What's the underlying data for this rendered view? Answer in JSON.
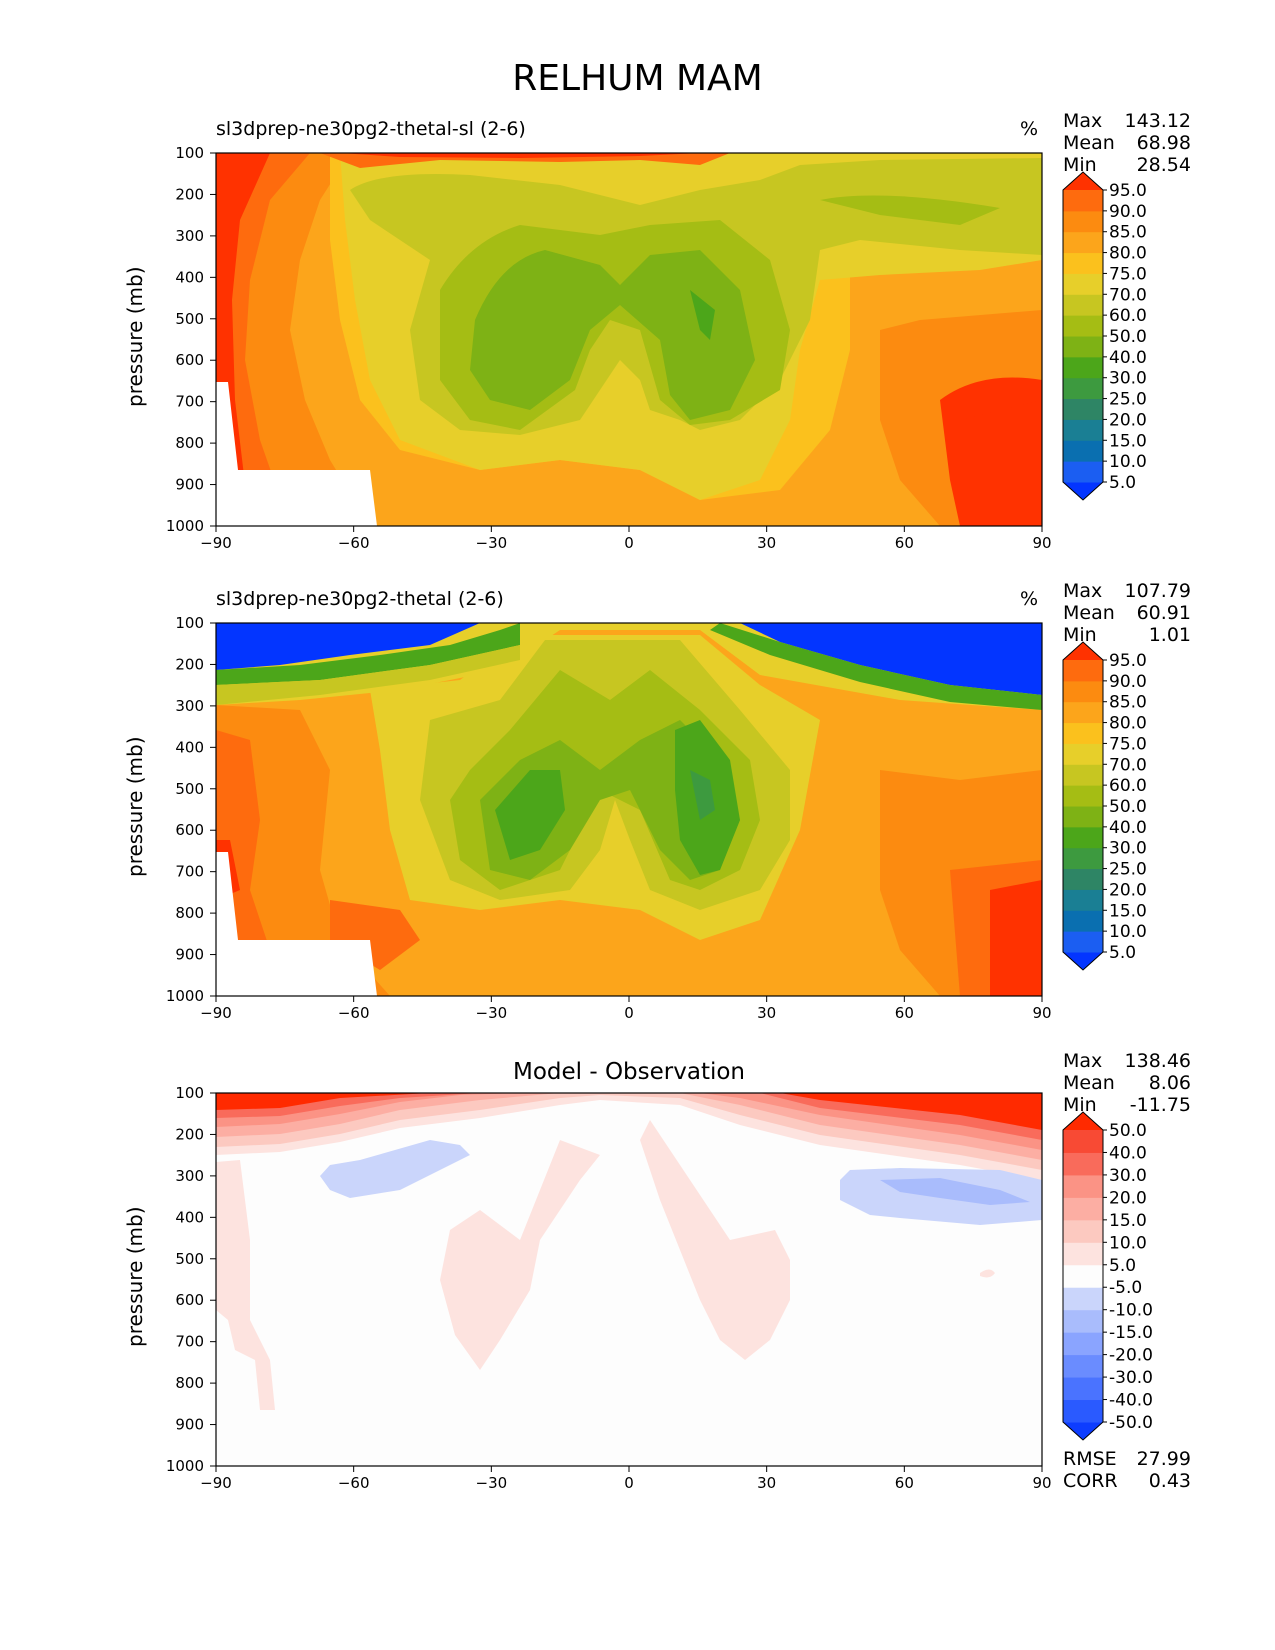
{
  "title": "RELHUM MAM",
  "panels": [
    {
      "title": "sl3dprep-ne30pg2-thetal-sl (2-6)",
      "units": "%",
      "stats": [
        {
          "label": "Max",
          "value": "143.12"
        },
        {
          "label": "Mean",
          "value": "68.98"
        },
        {
          "label": "Min",
          "value": "28.54"
        }
      ],
      "ylabel": "pressure (mb)",
      "colorbar_labels": [
        "95.0",
        "90.0",
        "85.0",
        "80.0",
        "75.0",
        "70.0",
        "60.0",
        "50.0",
        "40.0",
        "30.0",
        "25.0",
        "20.0",
        "15.0",
        "10.0",
        "5.0"
      ]
    },
    {
      "title": "sl3dprep-ne30pg2-thetal (2-6)",
      "units": "%",
      "stats": [
        {
          "label": "Max",
          "value": "107.79"
        },
        {
          "label": "Mean",
          "value": "60.91"
        },
        {
          "label": "Min",
          "value": "1.01"
        }
      ],
      "ylabel": "pressure (mb)",
      "colorbar_labels": [
        "95.0",
        "90.0",
        "85.0",
        "80.0",
        "75.0",
        "70.0",
        "60.0",
        "50.0",
        "40.0",
        "30.0",
        "25.0",
        "20.0",
        "15.0",
        "10.0",
        "5.0"
      ]
    },
    {
      "title": "Model - Observation",
      "units": "",
      "stats": [
        {
          "label": "Max",
          "value": "138.46"
        },
        {
          "label": "Mean",
          "value": "8.06"
        },
        {
          "label": "Min",
          "value": "-11.75"
        }
      ],
      "extra_stats": [
        {
          "label": "RMSE",
          "value": "27.99"
        },
        {
          "label": "CORR",
          "value": "0.43"
        }
      ],
      "ylabel": "pressure (mb)",
      "colorbar_labels": [
        "50.0",
        "40.0",
        "30.0",
        "20.0",
        "15.0",
        "10.0",
        "5.0",
        "-5.0",
        "-10.0",
        "-15.0",
        "-20.0",
        "-30.0",
        "-40.0",
        "-50.0"
      ]
    }
  ],
  "chart_data": [
    {
      "type": "heatmap",
      "title": "sl3dprep-ne30pg2-thetal-sl (2-6)",
      "ylabel": "pressure (mb)",
      "x_ticks": [
        -90,
        -60,
        -30,
        0,
        30,
        60,
        90
      ],
      "y_ticks": [
        100,
        200,
        300,
        400,
        500,
        600,
        700,
        800,
        900,
        1000
      ],
      "xlim": [
        -90,
        90
      ],
      "ylim": [
        1000,
        100
      ],
      "levels": [
        5,
        10,
        15,
        20,
        25,
        30,
        40,
        50,
        60,
        70,
        75,
        80,
        85,
        90,
        95
      ],
      "colors": [
        "#0335ff",
        "#1b5ef2",
        "#0a6fb0",
        "#1a7f94",
        "#2e8565",
        "#3d9a3f",
        "#4ca61a",
        "#7eb215",
        "#a5bd14",
        "#c7c621",
        "#e7cf2a",
        "#fbc11d",
        "#fca51b",
        "#fc8b10",
        "#fe6b0e",
        "#ff3200"
      ],
      "stats": {
        "max": 143.12,
        "mean": 68.98,
        "min": 28.54
      },
      "units": "%"
    },
    {
      "type": "heatmap",
      "title": "sl3dprep-ne30pg2-thetal (2-6)",
      "ylabel": "pressure (mb)",
      "x_ticks": [
        -90,
        -60,
        -30,
        0,
        30,
        60,
        90
      ],
      "y_ticks": [
        100,
        200,
        300,
        400,
        500,
        600,
        700,
        800,
        900,
        1000
      ],
      "xlim": [
        -90,
        90
      ],
      "ylim": [
        1000,
        100
      ],
      "levels": [
        5,
        10,
        15,
        20,
        25,
        30,
        40,
        50,
        60,
        70,
        75,
        80,
        85,
        90,
        95
      ],
      "colors": [
        "#0335ff",
        "#1b5ef2",
        "#0a6fb0",
        "#1a7f94",
        "#2e8565",
        "#3d9a3f",
        "#4ca61a",
        "#7eb215",
        "#a5bd14",
        "#c7c621",
        "#e7cf2a",
        "#fbc11d",
        "#fca51b",
        "#fc8b10",
        "#fe6b0e",
        "#ff3200"
      ],
      "stats": {
        "max": 107.79,
        "mean": 60.91,
        "min": 1.01
      },
      "units": "%"
    },
    {
      "type": "heatmap",
      "title": "Model - Observation",
      "ylabel": "pressure (mb)",
      "x_ticks": [
        -90,
        -60,
        -30,
        0,
        30,
        60,
        90
      ],
      "y_ticks": [
        100,
        200,
        300,
        400,
        500,
        600,
        700,
        800,
        900,
        1000
      ],
      "xlim": [
        -90,
        90
      ],
      "ylim": [
        1000,
        100
      ],
      "levels": [
        -50,
        -40,
        -30,
        -20,
        -15,
        -10,
        -5,
        5,
        10,
        15,
        20,
        30,
        40,
        50
      ],
      "colors": [
        "#0d3dff",
        "#2a5aff",
        "#4a73ff",
        "#6a8cff",
        "#8aa4ff",
        "#a9bcfc",
        "#cad5fb",
        "#fdfdfd",
        "#fde3df",
        "#fcc9c0",
        "#fcaea3",
        "#fb9385",
        "#f96b5b",
        "#f84a34",
        "#ff2a00"
      ],
      "stats": {
        "max": 138.46,
        "mean": 8.06,
        "min": -11.75,
        "rmse": 27.99,
        "corr": 0.43
      }
    }
  ]
}
